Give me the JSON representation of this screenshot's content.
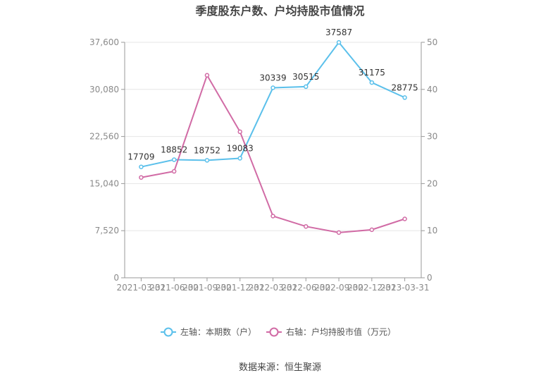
{
  "title": "季度股东户数、户均持股市值情况",
  "source": "数据来源：恒生聚源",
  "colors": {
    "left_series": "#5bc0eb",
    "right_series": "#d16ba5",
    "axis": "#999999",
    "grid": "#e6e6e6"
  },
  "chart_data": {
    "type": "line",
    "x": [
      "2021-03-31",
      "2021-06-30",
      "2021-09-30",
      "2021-12-31",
      "2022-03-31",
      "2022-06-30",
      "2022-09-30",
      "2022-12-31",
      "2023-03-31"
    ],
    "y_left": {
      "ticks": [
        "0",
        "7,520",
        "15,040",
        "22,560",
        "30,080",
        "37,600"
      ],
      "ylim": [
        0,
        37600
      ]
    },
    "y_right": {
      "ticks": [
        "0",
        "10",
        "20",
        "30",
        "40",
        "50"
      ],
      "ylim": [
        0,
        50
      ]
    },
    "series": [
      {
        "name": "左轴：本期数（户）",
        "axis": "left",
        "values": [
          17709,
          18852,
          18752,
          19083,
          30339,
          30515,
          37587,
          31175,
          28775
        ],
        "labels": [
          "17709",
          "18852",
          "18752",
          "19083",
          "30339",
          "30515",
          "37587",
          "31175",
          "28775"
        ]
      },
      {
        "name": "右轴：户均持股市值（万元）",
        "axis": "right",
        "values": [
          21.3,
          22.6,
          43.0,
          31.0,
          13.1,
          10.9,
          9.6,
          10.2,
          12.5
        ]
      }
    ],
    "grid": true,
    "legend_position": "bottom"
  }
}
